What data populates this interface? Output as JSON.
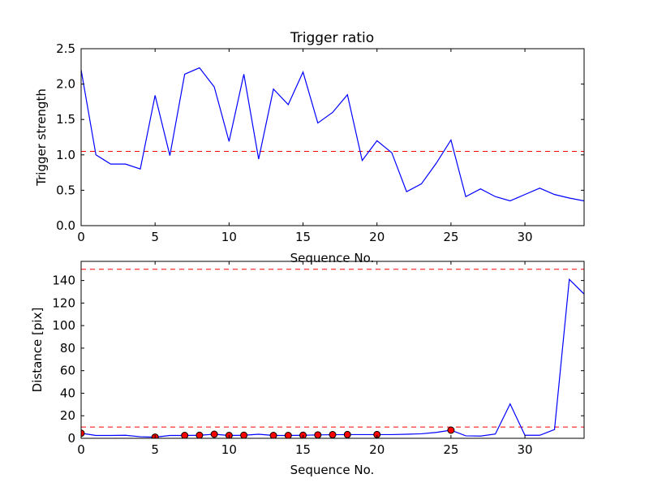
{
  "colors": {
    "background": "#ffffff",
    "axes": "#000000",
    "series": "#0000ff",
    "threshold": "#ff0000",
    "marker_fill": "#ff0000",
    "marker_edge": "#000000"
  },
  "chart_data": [
    {
      "type": "line",
      "title": "Trigger ratio",
      "xlabel": "Sequence No.",
      "ylabel": "Trigger strength",
      "xlim": [
        0,
        34
      ],
      "ylim": [
        0.0,
        2.5
      ],
      "xticks": [
        0,
        5,
        10,
        15,
        20,
        25,
        30
      ],
      "xtick_labels": [
        "0",
        "5",
        "10",
        "15",
        "20",
        "25",
        "30"
      ],
      "yticks": [
        0.0,
        0.5,
        1.0,
        1.5,
        2.0,
        2.5
      ],
      "ytick_labels": [
        "0.0",
        "0.5",
        "1.0",
        "1.5",
        "2.0",
        "2.5"
      ],
      "grid": false,
      "series": [
        {
          "style": "solid",
          "color": "#0000ff",
          "x": [
            0,
            1,
            2,
            3,
            4,
            5,
            6,
            7,
            8,
            9,
            10,
            11,
            12,
            13,
            14,
            15,
            16,
            17,
            18,
            19,
            20,
            21,
            22,
            23,
            24,
            25,
            26,
            27,
            28,
            29,
            30,
            31,
            32,
            33,
            34
          ],
          "y": [
            2.2,
            1.0,
            0.87,
            0.87,
            0.8,
            1.84,
            0.99,
            2.14,
            2.23,
            1.96,
            1.19,
            2.14,
            0.94,
            1.93,
            1.71,
            2.17,
            1.45,
            1.6,
            1.85,
            0.92,
            1.2,
            1.03,
            0.48,
            0.59,
            0.88,
            1.21,
            0.41,
            0.52,
            0.41,
            0.35,
            0.44,
            0.53,
            0.44,
            0.39,
            0.35
          ]
        }
      ],
      "hlines": [
        {
          "y": 1.05,
          "style": "dashed",
          "color": "#ff0000"
        }
      ]
    },
    {
      "type": "line",
      "title": "",
      "xlabel": "Sequence No.",
      "ylabel": "Distance [pix]",
      "xlim": [
        0,
        34
      ],
      "ylim": [
        0,
        157
      ],
      "xticks": [
        0,
        5,
        10,
        15,
        20,
        25,
        30
      ],
      "xtick_labels": [
        "0",
        "5",
        "10",
        "15",
        "20",
        "25",
        "30"
      ],
      "yticks": [
        0,
        20,
        40,
        60,
        80,
        100,
        120,
        140
      ],
      "ytick_labels": [
        "0",
        "20",
        "40",
        "60",
        "80",
        "100",
        "120",
        "140"
      ],
      "grid": false,
      "series": [
        {
          "style": "solid",
          "color": "#0000ff",
          "x": [
            0,
            1,
            2,
            3,
            4,
            5,
            6,
            7,
            8,
            9,
            10,
            11,
            12,
            13,
            14,
            15,
            16,
            17,
            18,
            19,
            20,
            21,
            22,
            23,
            24,
            25,
            26,
            27,
            28,
            29,
            30,
            31,
            32,
            33,
            34
          ],
          "y": [
            4.5,
            2.5,
            2.5,
            2.7,
            1.4,
            1.0,
            2.5,
            2.5,
            2.7,
            3.6,
            2.5,
            2.7,
            3.6,
            2.5,
            2.5,
            2.7,
            3.0,
            3.2,
            3.3,
            3.3,
            3.3,
            3.3,
            3.6,
            4.0,
            5.2,
            7.2,
            2.2,
            2.0,
            3.8,
            30.5,
            2.7,
            2.7,
            7.8,
            141,
            128
          ]
        },
        {
          "style": "markers",
          "color": "#ff0000",
          "x": [
            0,
            5,
            7,
            8,
            9,
            10,
            11,
            13,
            14,
            15,
            16,
            17,
            18,
            20,
            25
          ],
          "y": [
            4.5,
            1.0,
            2.5,
            2.7,
            3.6,
            2.5,
            2.7,
            2.5,
            2.5,
            2.7,
            3.0,
            3.2,
            3.3,
            3.3,
            7.2
          ]
        }
      ],
      "hlines": [
        {
          "y": 150,
          "style": "dashed",
          "color": "#ff0000"
        },
        {
          "y": 10,
          "style": "dashed",
          "color": "#ff0000"
        }
      ]
    }
  ]
}
